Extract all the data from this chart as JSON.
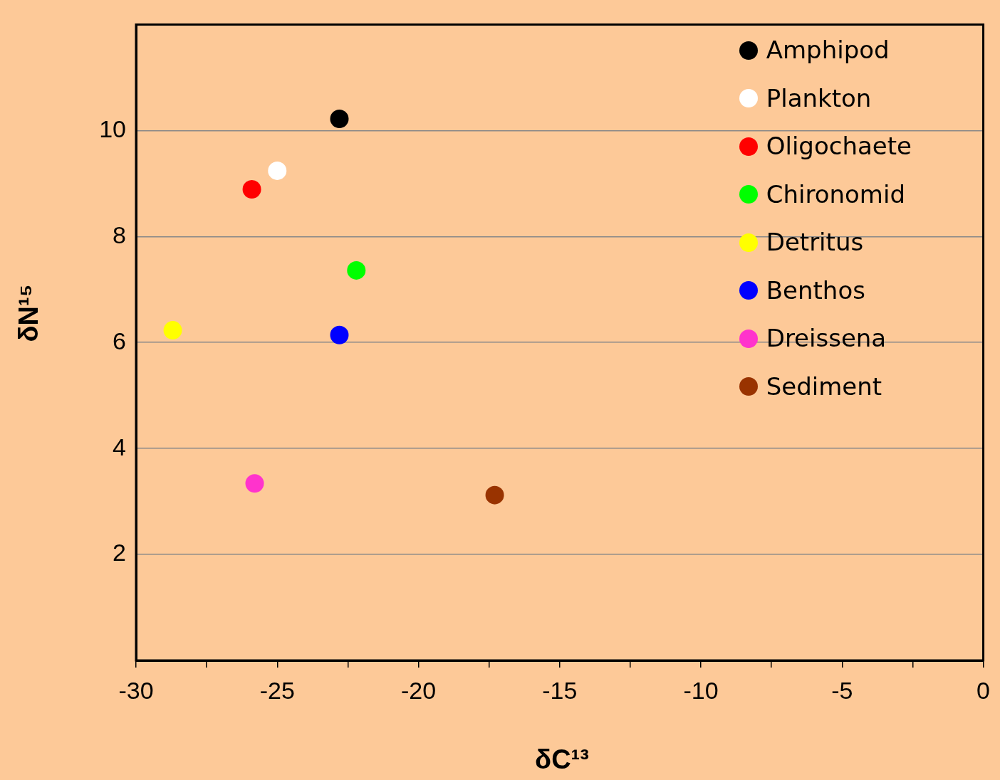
{
  "chart_data": {
    "type": "scatter",
    "xlabel": "δC¹³",
    "ylabel": "δN¹⁵",
    "xlim": [
      -30,
      0
    ],
    "xticks": [
      -30,
      {
        "value": -27.5,
        "label": null
      },
      -25,
      {
        "value": -22.5,
        "label": null
      },
      -20,
      {
        "value": -17.5,
        "label": null
      },
      -15,
      {
        "value": -12.5,
        "label": null
      },
      -10,
      {
        "value": -7.5,
        "label": null
      },
      -5,
      {
        "value": -2.5,
        "label": null
      },
      0
    ],
    "ylim": [
      0,
      12
    ],
    "yticks": [
      2,
      4,
      6,
      8,
      10
    ],
    "grid": "y",
    "legend": "top right",
    "marker": "circle",
    "series": [
      {
        "name": "Amphipod",
        "color": "#000000",
        "x": [
          -22.8
        ],
        "values": [
          10.22
        ]
      },
      {
        "name": "Plankton",
        "color": "#ffffff",
        "x": [
          -25.0
        ],
        "values": [
          9.24
        ]
      },
      {
        "name": "Oligochaete",
        "color": "#ff0000",
        "x": [
          -25.9
        ],
        "values": [
          8.89
        ]
      },
      {
        "name": "Chironomid",
        "color": "#00ff00",
        "x": [
          -22.2
        ],
        "values": [
          7.36
        ]
      },
      {
        "name": "Detritus",
        "color": "#ffff00",
        "x": [
          -28.7
        ],
        "values": [
          6.23
        ]
      },
      {
        "name": "Benthos",
        "color": "#0000ff",
        "x": [
          -22.8
        ],
        "values": [
          6.14
        ]
      },
      {
        "name": "Dreissena",
        "color": "#ff33cc",
        "x": [
          -25.8
        ],
        "values": [
          3.34
        ]
      },
      {
        "name": "Sediment",
        "color": "#993300",
        "x": [
          -17.3
        ],
        "values": [
          3.12
        ]
      }
    ]
  }
}
